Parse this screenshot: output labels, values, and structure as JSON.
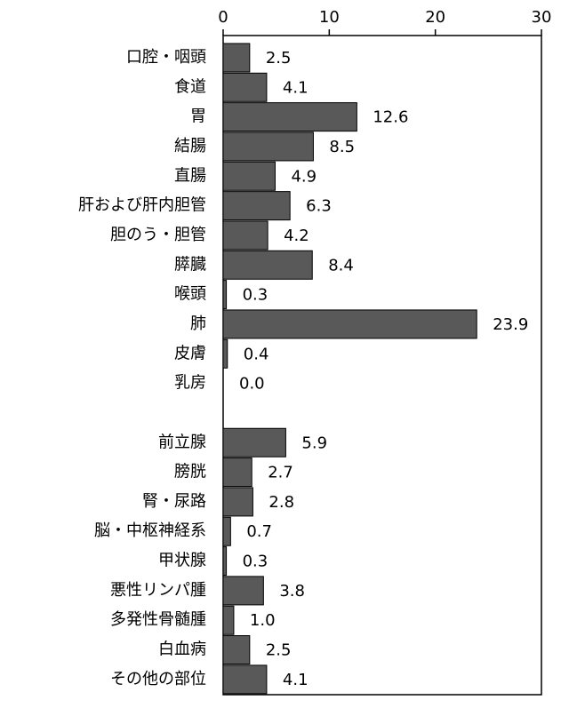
{
  "chart_data": {
    "type": "bar",
    "orientation": "horizontal",
    "categories": [
      "口腔・咽頭",
      "食道",
      "胃",
      "結腸",
      "直腸",
      "肝および肝内胆管",
      "胆のう・胆管",
      "膵臓",
      "喉頭",
      "肺",
      "皮膚",
      "乳房",
      null,
      "前立腺",
      "膀胱",
      "腎・尿路",
      "脳・中枢神経系",
      "甲状腺",
      "悪性リンパ腫",
      "多発性骨髄腫",
      "白血病",
      "その他の部位"
    ],
    "values": [
      2.5,
      4.1,
      12.6,
      8.5,
      4.9,
      6.3,
      4.2,
      8.4,
      0.3,
      23.9,
      0.4,
      0.0,
      null,
      5.9,
      2.7,
      2.8,
      0.7,
      0.3,
      3.8,
      1.0,
      2.5,
      4.1
    ],
    "value_labels": [
      "2.5",
      "4.1",
      "12.6",
      "8.5",
      "4.9",
      "6.3",
      "4.2",
      "8.4",
      "0.3",
      "23.9",
      "0.4",
      "0.0",
      null,
      "5.9",
      "2.7",
      "2.8",
      "0.7",
      "0.3",
      "3.8",
      "1.0",
      "2.5",
      "4.1"
    ],
    "color": "#595959",
    "xlim": [
      0,
      30
    ],
    "xticks": [
      0,
      10,
      20,
      30
    ],
    "grid": false
  }
}
